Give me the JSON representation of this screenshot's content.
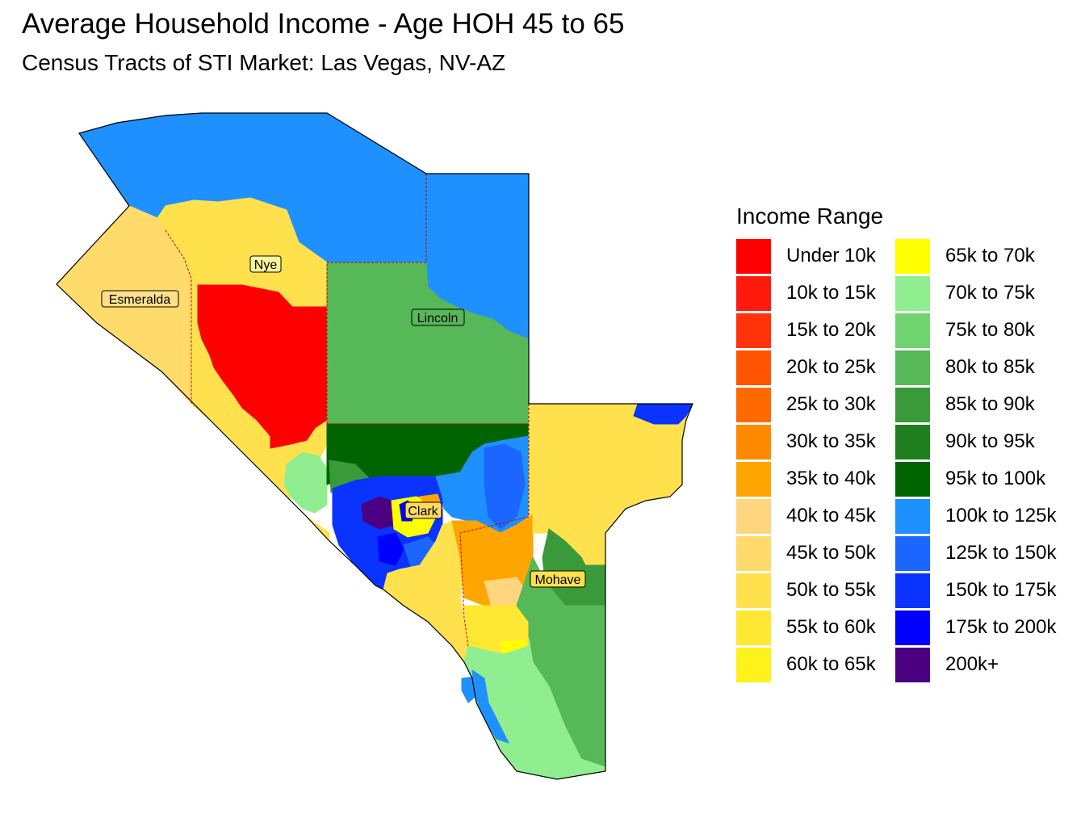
{
  "title": "Average Household Income - Age HOH 45 to 65",
  "subtitle": "Census Tracts of STI Market: Las Vegas, NV-AZ",
  "legend": {
    "title": "Income Range",
    "items": [
      {
        "label": "Under 10k",
        "color": "#ff0000"
      },
      {
        "label": "10k to 15k",
        "color": "#ff1a0d"
      },
      {
        "label": "15k to 20k",
        "color": "#ff330a"
      },
      {
        "label": "20k to 25k",
        "color": "#ff5500"
      },
      {
        "label": "25k to 30k",
        "color": "#ff6a00"
      },
      {
        "label": "30k to 35k",
        "color": "#ff8a00"
      },
      {
        "label": "35k to 40k",
        "color": "#ffa500"
      },
      {
        "label": "40k to 45k",
        "color": "#ffd580"
      },
      {
        "label": "45k to 50k",
        "color": "#ffdb6b"
      },
      {
        "label": "50k to 55k",
        "color": "#ffe14d"
      },
      {
        "label": "55k to 60k",
        "color": "#ffe833"
      },
      {
        "label": "60k to 65k",
        "color": "#fff21a"
      },
      {
        "label": "65k to 70k",
        "color": "#ffff00"
      },
      {
        "label": "70k to 75k",
        "color": "#90ee90"
      },
      {
        "label": "75k to 80k",
        "color": "#70d470"
      },
      {
        "label": "80k to 85k",
        "color": "#56b856"
      },
      {
        "label": "85k to 90k",
        "color": "#3a9a3a"
      },
      {
        "label": "90k to 95k",
        "color": "#1f7f1f"
      },
      {
        "label": "95k to 100k",
        "color": "#006400"
      },
      {
        "label": "100k to 125k",
        "color": "#1e90ff"
      },
      {
        "label": "125k to 150k",
        "color": "#1a66ff"
      },
      {
        "label": "150k to 175k",
        "color": "#0a33ff"
      },
      {
        "label": "175k to 200k",
        "color": "#0000ff"
      },
      {
        "label": "200k+",
        "color": "#4b0082"
      }
    ]
  },
  "counties": [
    {
      "name": "Nye"
    },
    {
      "name": "Esmeralda"
    },
    {
      "name": "Lincoln"
    },
    {
      "name": "Clark"
    },
    {
      "name": "Mohave"
    }
  ],
  "colors": {
    "county_border": "#cc0000",
    "outline": "#000000"
  }
}
